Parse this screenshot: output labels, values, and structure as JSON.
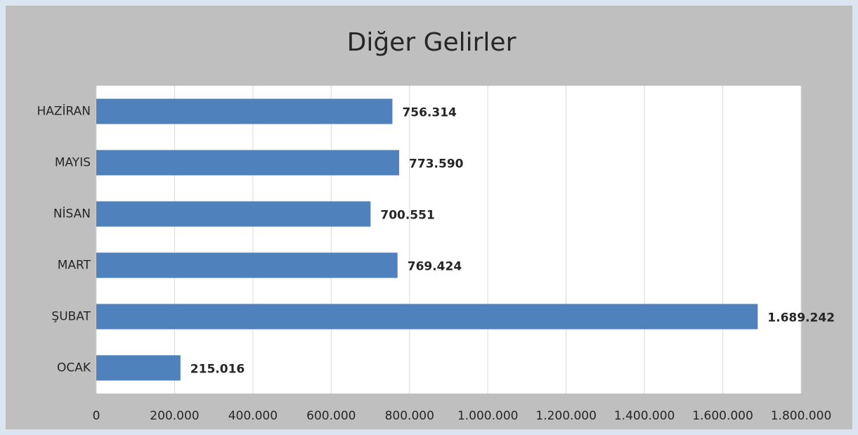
{
  "chart_data": {
    "type": "bar",
    "orientation": "horizontal",
    "title": "Diğer Gelirler",
    "categories": [
      "OCAK",
      "ŞUBAT",
      "MART",
      "NİSAN",
      "MAYIS",
      "HAZİRAN"
    ],
    "values": [
      215016,
      1689242,
      769424,
      700551,
      773590,
      756314
    ],
    "value_labels": [
      "215.016",
      "1.689.242",
      "769.424",
      "700.551",
      "773.590",
      "756.314"
    ],
    "color": "#4f81bd",
    "xlim": [
      0,
      1800000
    ],
    "xticks": [
      0,
      {
        "value": 200000,
        "label": "200.000"
      },
      {
        "value": 400000,
        "label": "400.000"
      },
      {
        "value": 600000,
        "label": "600.000"
      },
      {
        "value": 800000,
        "label": "800.000"
      },
      {
        "value": 1000000,
        "label": "1.000.000"
      },
      {
        "value": 1200000,
        "label": "1.200.000"
      },
      {
        "value": 1400000,
        "label": "1.400.000"
      },
      {
        "value": 1600000,
        "label": "1.600.000"
      },
      {
        "value": 1800000,
        "label": "1.800.000"
      }
    ],
    "grid": true
  }
}
